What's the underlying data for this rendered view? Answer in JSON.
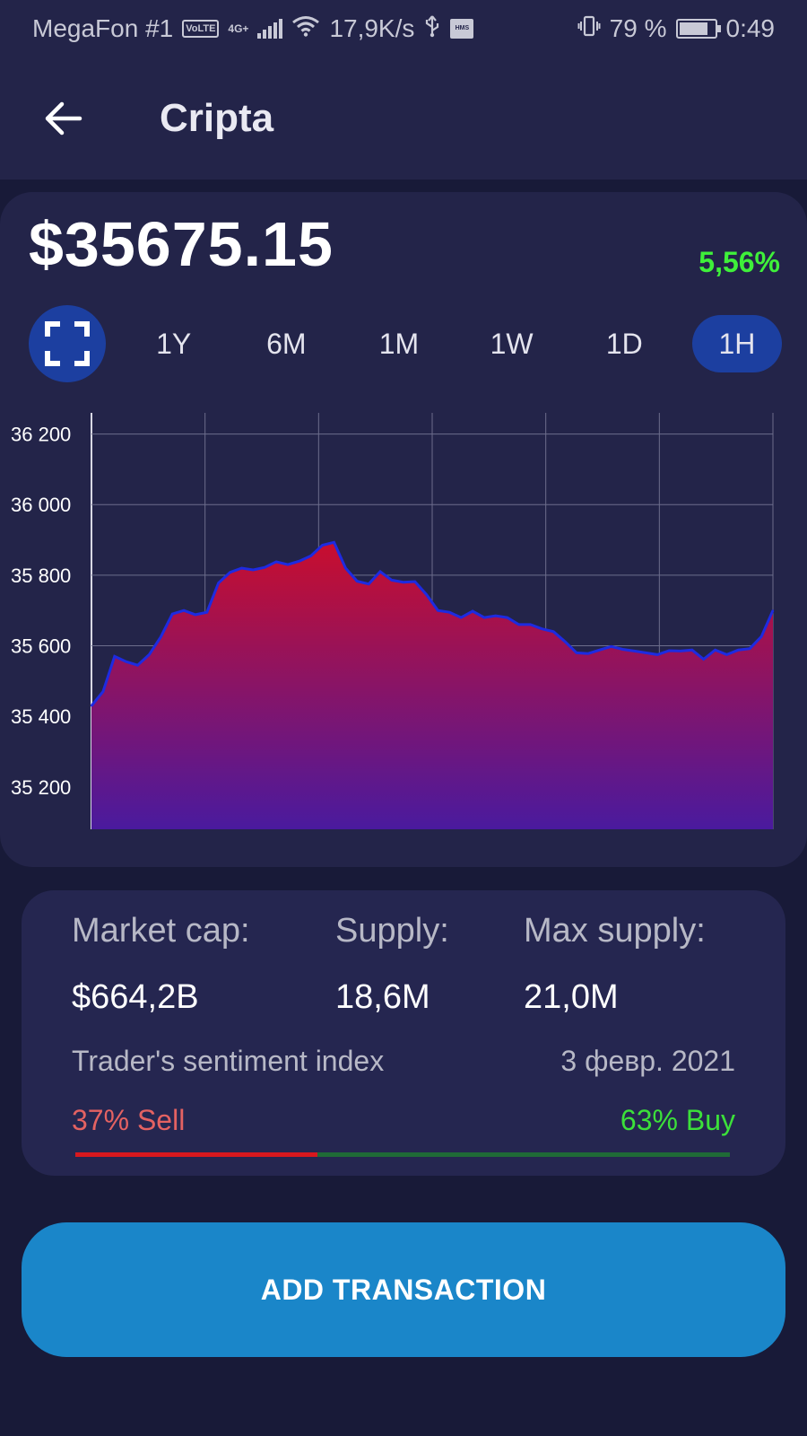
{
  "status_bar": {
    "carrier": "MegaFon #1",
    "volte": "VoLTE",
    "network": "4G+",
    "speed": "17,9K/s",
    "hms": "HMS",
    "battery": "79 %",
    "battery_level": 0.79,
    "time": "0:49"
  },
  "app_bar": {
    "title": "Cripta"
  },
  "price": {
    "value": "$35675.15",
    "change": "5,56%",
    "change_color": "#3ff03a"
  },
  "ranges": {
    "items": [
      "1Y",
      "6M",
      "1M",
      "1W",
      "1D",
      "1H"
    ],
    "active": "1H"
  },
  "chart_data": {
    "type": "area",
    "ylim": [
      35080,
      36260
    ],
    "y_ticks": [
      35200,
      35400,
      35600,
      35800,
      36000,
      36200
    ],
    "y_tick_labels": [
      "35 200",
      "35 400",
      "35 600",
      "35 800",
      "36 000",
      "36 200"
    ],
    "grid": true,
    "line_color": "#1e2be0",
    "fill_top_color": "#c80e2e",
    "fill_bottom_color": "#4a1a9e",
    "series": [
      {
        "values": [
          35430,
          35470,
          35570,
          35555,
          35545,
          35575,
          35625,
          35690,
          35700,
          35688,
          35695,
          35778,
          35808,
          35820,
          35815,
          35822,
          35838,
          35830,
          35840,
          35855,
          35885,
          35893,
          35820,
          35783,
          35775,
          35810,
          35786,
          35780,
          35782,
          35745,
          35700,
          35695,
          35680,
          35698,
          35680,
          35685,
          35680,
          35660,
          35660,
          35648,
          35640,
          35612,
          35580,
          35578,
          35588,
          35598,
          35590,
          35585,
          35580,
          35575,
          35586,
          35585,
          35588,
          35562,
          35588,
          35575,
          35588,
          35592,
          35626,
          35700
        ]
      }
    ]
  },
  "stats": {
    "market_cap_label": "Market cap:",
    "market_cap_value": "$664,2B",
    "supply_label": "Supply:",
    "supply_value": "18,6M",
    "max_supply_label": "Max supply:",
    "max_supply_value": "21,0M",
    "sentiment_label": "Trader's sentiment index",
    "sentiment_date": "3 февр. 2021",
    "sell_text": "37% Sell",
    "buy_text": "63% Buy",
    "sell_fraction": 0.37,
    "sell_color": "#d8181e",
    "buy_color": "#1f6a36"
  },
  "actions": {
    "add_transaction": "ADD TRANSACTION"
  },
  "icons": {
    "back": "arrow-left-icon",
    "expand": "fullscreen-icon"
  }
}
